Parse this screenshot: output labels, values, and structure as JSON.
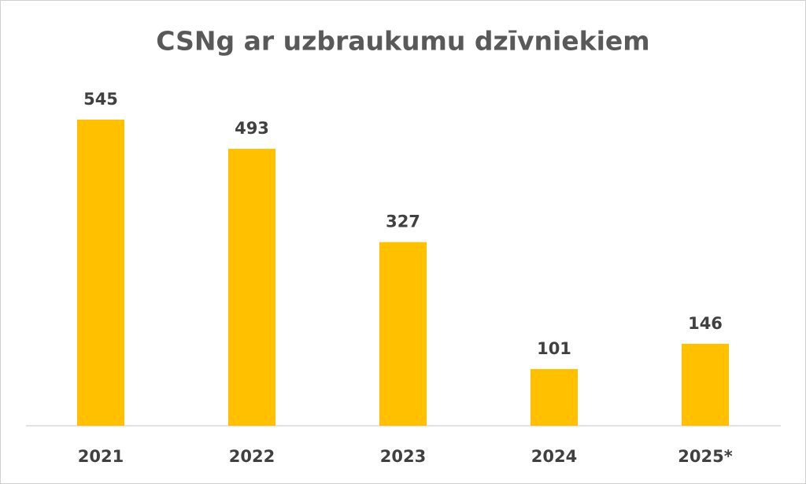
{
  "chart_data": {
    "type": "bar",
    "title": "CSNg ar uzbraukumu dzīvniekiem",
    "categories": [
      "2021",
      "2022",
      "2023",
      "2024",
      "2025*"
    ],
    "values": [
      545,
      493,
      327,
      101,
      146
    ],
    "color": "#ffc000"
  }
}
